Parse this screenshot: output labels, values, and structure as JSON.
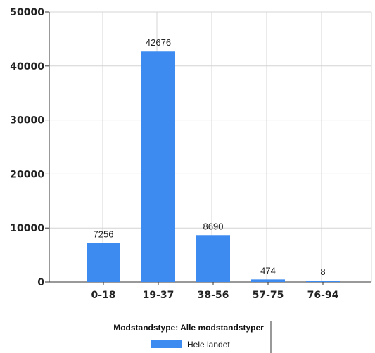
{
  "chart_data": {
    "type": "bar",
    "categories": [
      "0-18",
      "19-37",
      "38-56",
      "57-75",
      "76-94"
    ],
    "series": [
      {
        "name": "Hele landet",
        "values": [
          7256,
          42676,
          8690,
          474,
          8
        ],
        "color": "#3d8bf0"
      }
    ],
    "data_labels": [
      "7256",
      "42676",
      "8690",
      "474",
      "8"
    ],
    "yticks": [
      0,
      10000,
      20000,
      30000,
      40000,
      50000
    ],
    "ylim": [
      0,
      50000
    ],
    "grid": true,
    "legend": {
      "title": "Modstandstype: Alle modstandstyper",
      "position": "bottom-center"
    }
  }
}
